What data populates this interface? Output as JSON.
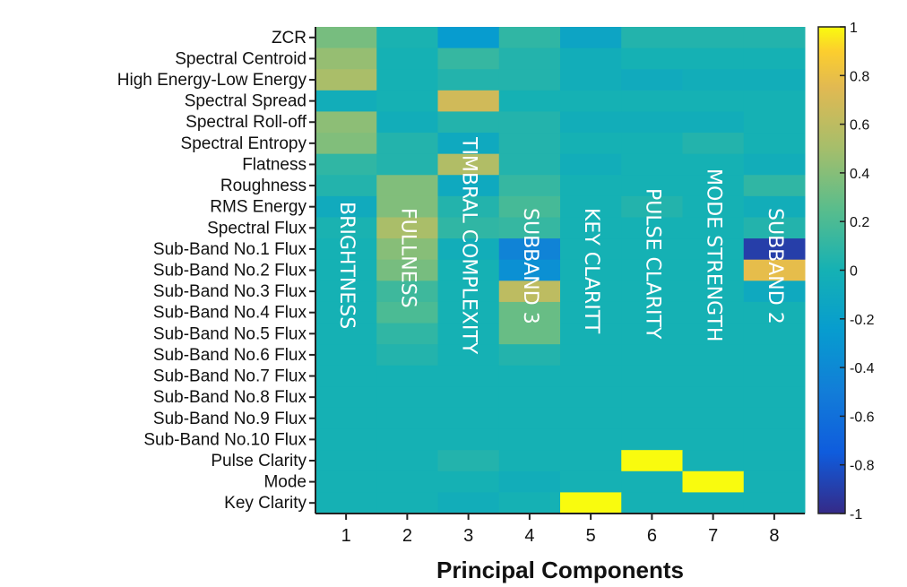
{
  "chart_data": {
    "type": "heatmap",
    "xlabel": "Principal Components",
    "x_ticks": [
      "1",
      "2",
      "3",
      "4",
      "5",
      "6",
      "7",
      "8"
    ],
    "rows": [
      "ZCR",
      "Spectral Centroid",
      "High Energy-Low Energy",
      "Spectral Spread",
      "Spectral Roll-off",
      "Spectral Entropy",
      "Flatness",
      "Roughness",
      "RMS Energy",
      "Spectral Flux",
      "Sub-Band No.1 Flux",
      "Sub-Band No.2 Flux",
      "Sub-Band No.3 Flux",
      "Sub-Band No.4 Flux",
      "Sub-Band No.5 Flux",
      "Sub-Band No.6 Flux",
      "Sub-Band No.7 Flux",
      "Sub-Band No.8 Flux",
      "Sub-Band No.9 Flux",
      "Sub-Band No.10 Flux",
      "Pulse Clarity",
      "Mode",
      "Key Clarity"
    ],
    "values": [
      [
        0.35,
        0.02,
        -0.25,
        0.1,
        -0.15,
        0.05,
        0.05,
        0.05
      ],
      [
        0.45,
        0.0,
        0.12,
        0.05,
        -0.05,
        0.0,
        0.0,
        0.0
      ],
      [
        0.52,
        0.0,
        0.05,
        0.05,
        -0.05,
        -0.08,
        -0.05,
        -0.05
      ],
      [
        -0.05,
        0.0,
        0.68,
        0.0,
        0.0,
        0.0,
        0.0,
        0.0
      ],
      [
        0.42,
        -0.05,
        0.05,
        0.05,
        -0.05,
        -0.05,
        -0.05,
        0.0
      ],
      [
        0.38,
        0.05,
        -0.1,
        0.05,
        0.0,
        0.0,
        0.05,
        0.0
      ],
      [
        0.1,
        0.05,
        0.55,
        0.05,
        -0.05,
        0.0,
        0.0,
        -0.05
      ],
      [
        0.05,
        0.38,
        -0.1,
        0.12,
        0.0,
        0.0,
        0.0,
        0.1
      ],
      [
        -0.08,
        0.38,
        0.05,
        0.18,
        0.0,
        0.05,
        0.0,
        -0.05
      ],
      [
        0.02,
        0.52,
        0.1,
        0.12,
        0.0,
        0.0,
        0.0,
        0.05
      ],
      [
        0.0,
        0.4,
        -0.05,
        -0.45,
        0.0,
        0.0,
        0.0,
        -0.9
      ],
      [
        0.0,
        0.35,
        0.0,
        -0.35,
        0.0,
        0.0,
        0.0,
        0.78
      ],
      [
        0.0,
        0.15,
        0.0,
        0.6,
        0.0,
        0.0,
        0.0,
        -0.1
      ],
      [
        0.0,
        0.2,
        0.0,
        0.3,
        0.0,
        0.0,
        0.0,
        0.0
      ],
      [
        0.0,
        0.1,
        0.0,
        0.3,
        0.0,
        0.0,
        0.0,
        0.0
      ],
      [
        0.0,
        0.05,
        0.0,
        0.05,
        0.0,
        0.0,
        0.0,
        0.0
      ],
      [
        0.0,
        0.0,
        0.0,
        0.0,
        0.0,
        0.0,
        0.0,
        0.0
      ],
      [
        0.0,
        0.0,
        0.0,
        0.0,
        0.0,
        0.0,
        0.0,
        0.0
      ],
      [
        0.0,
        0.0,
        0.0,
        0.0,
        0.0,
        0.0,
        0.0,
        0.0
      ],
      [
        0.0,
        0.0,
        0.0,
        0.0,
        0.0,
        0.0,
        0.0,
        0.0
      ],
      [
        0.0,
        0.0,
        0.05,
        0.0,
        0.0,
        1.0,
        0.0,
        0.0
      ],
      [
        0.0,
        0.0,
        0.0,
        -0.05,
        0.0,
        0.0,
        1.0,
        0.0
      ],
      [
        0.0,
        0.0,
        -0.05,
        0.0,
        1.0,
        0.0,
        0.0,
        0.0
      ]
    ],
    "colorbar": {
      "range": [
        -1,
        1
      ],
      "ticks": [
        "1",
        "0.8",
        "0.6",
        "0.4",
        "0.2",
        "0",
        "-0.2",
        "-0.4",
        "-0.6",
        "-0.8",
        "-1"
      ],
      "colormap": "parula"
    },
    "annotations": [
      "BRIGHTNESS",
      "FULLNESS",
      "TIMBRAL COMPLEXITY",
      "SUBBAND 3",
      "KEY CLARITT",
      "PULSE CLARITY",
      "MODE STRENGTH",
      "SUBBAND 2"
    ],
    "annotation_color": "#ffffff"
  }
}
